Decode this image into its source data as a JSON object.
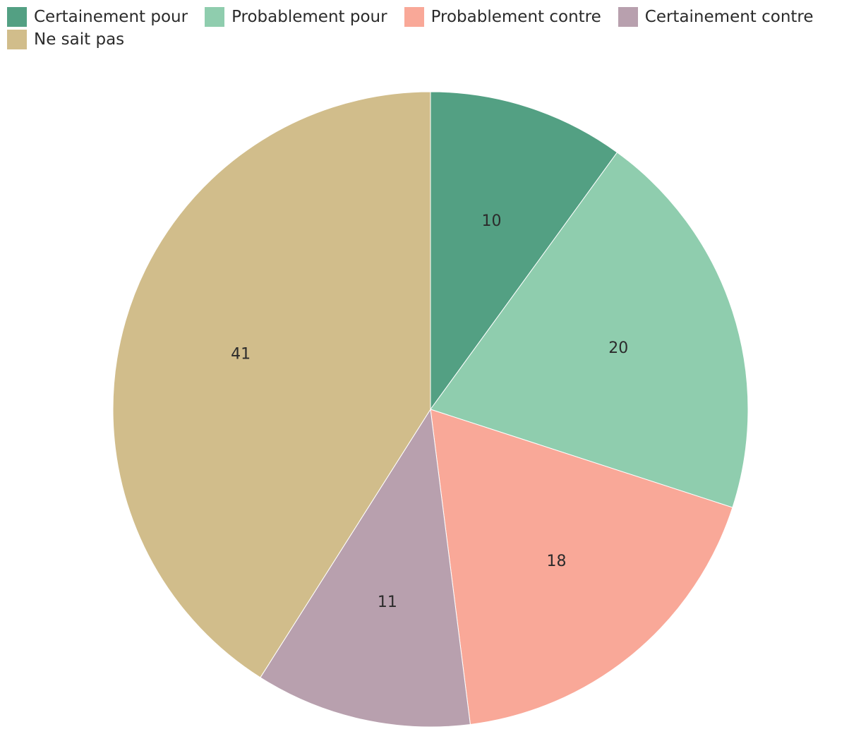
{
  "chart_data": {
    "type": "pie",
    "categories": [
      "Certainement pour",
      "Probablement pour",
      "Probablement contre",
      "Certainement contre",
      "Ne sait pas"
    ],
    "values": [
      10,
      20,
      18,
      11,
      41
    ],
    "data_labels": [
      "10",
      "20",
      "18",
      "11",
      "41"
    ],
    "colors": [
      "#53a083",
      "#8fcdae",
      "#f9a898",
      "#b8a0ae",
      "#d1bd8b"
    ],
    "legend_placement": "top-left",
    "start_angle": "12 o'clock",
    "direction": "clockwise",
    "slice_border_color": "#ffffff"
  }
}
